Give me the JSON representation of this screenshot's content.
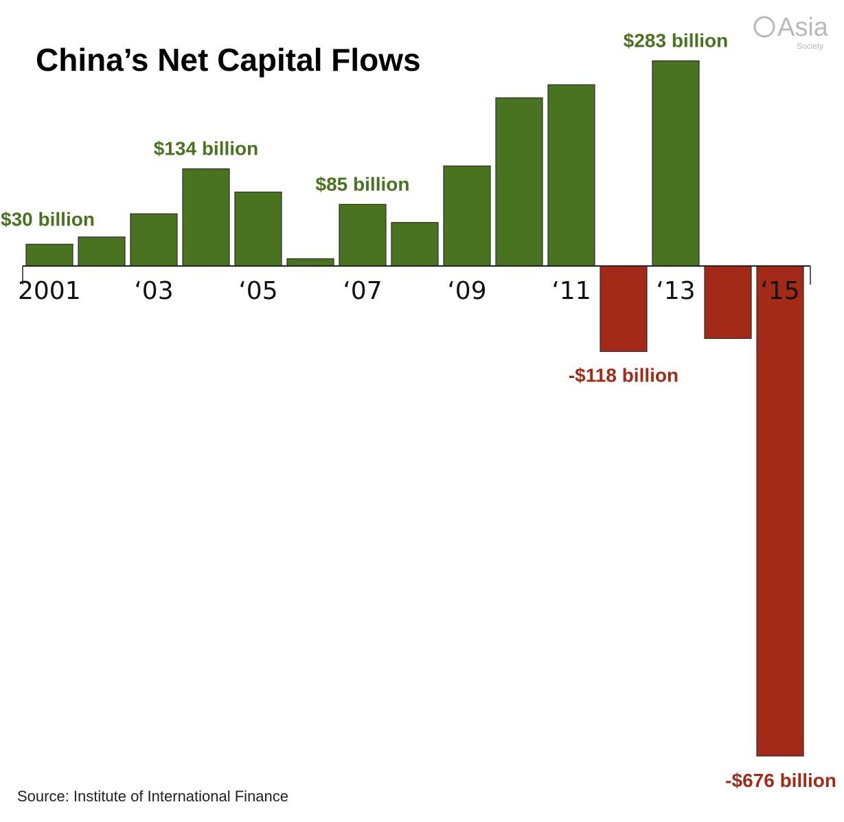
{
  "title": "China’s Net Capital Flows",
  "source": "Source: Institute of International Finance",
  "logo": {
    "name": "Asia",
    "sub": "Society"
  },
  "colors": {
    "positive": "#4a7320",
    "negative": "#a32a17",
    "axis": "#222222"
  },
  "chart_data": {
    "type": "bar",
    "title": "China’s Net Capital Flows",
    "xlabel": "",
    "ylabel": "",
    "unit": "billion USD",
    "categories": [
      "2001",
      "2002",
      "2003",
      "2004",
      "2005",
      "2006",
      "2007",
      "2008",
      "2009",
      "2010",
      "2011",
      "2012",
      "2013",
      "2014",
      "2015"
    ],
    "values": [
      30,
      40,
      72,
      134,
      102,
      10,
      85,
      60,
      138,
      232,
      250,
      -118,
      283,
      -100,
      -676
    ],
    "tick_labels": [
      "2001",
      "‘03",
      "‘05",
      "‘07",
      "‘09",
      "‘11",
      "‘13",
      "‘15"
    ],
    "tick_label_indices": [
      0,
      2,
      4,
      6,
      8,
      10,
      12,
      14
    ],
    "data_labels": [
      {
        "index": 0,
        "text": "$30 billion"
      },
      {
        "index": 3,
        "text": "$134 billion"
      },
      {
        "index": 6,
        "text": "$85 billion"
      },
      {
        "index": 11,
        "text": "-$118 billion"
      },
      {
        "index": 12,
        "text": "$283 billion"
      },
      {
        "index": 14,
        "text": "-$676 billion"
      }
    ],
    "ylim": [
      -676,
      283
    ],
    "grid": false,
    "legend": "none"
  }
}
